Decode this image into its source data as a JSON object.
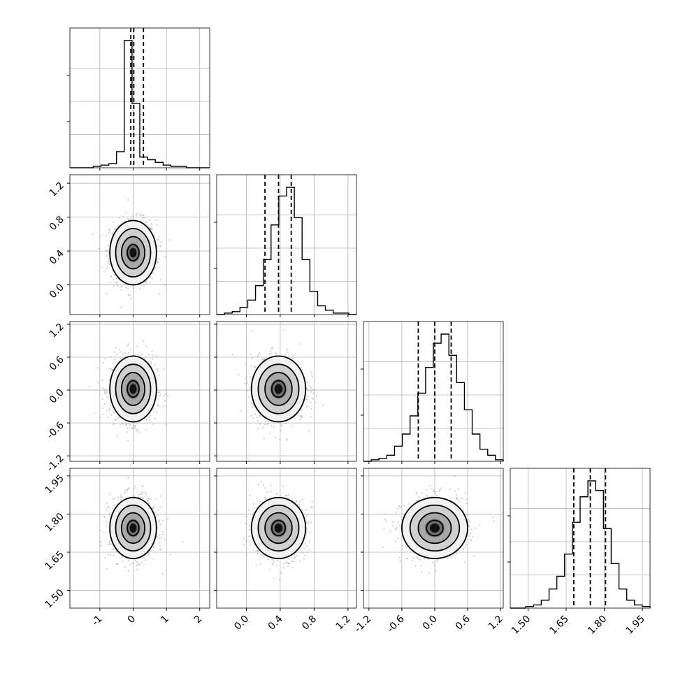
{
  "chart_data": {
    "type": "corner",
    "colors": {
      "histogram": "#000000",
      "grid": "#b0b0b0",
      "scatter": "#a0a0a0",
      "background": "#ffffff"
    },
    "grid": true,
    "n_params": 4,
    "ranges": [
      [
        -1.9,
        2.3
      ],
      [
        -0.35,
        1.3
      ],
      [
        -1.3,
        1.25
      ],
      [
        1.43,
        1.98
      ]
    ],
    "ticks": {
      "p0": [
        "-1",
        "0",
        "1",
        "2"
      ],
      "p1": [
        "0.0",
        "0.4",
        "0.8",
        "1.2"
      ],
      "p2": [
        "-1.2",
        "-0.6",
        "0.0",
        "0.6",
        "1.2"
      ],
      "p3": [
        "1.50",
        "1.65",
        "1.80",
        "1.95"
      ]
    },
    "quantiles": [
      [
        -0.07,
        0.02,
        0.31
      ],
      [
        0.22,
        0.38,
        0.53
      ],
      [
        -0.3,
        0.0,
        0.3
      ],
      [
        1.68,
        1.745,
        1.805
      ]
    ],
    "histograms": [
      {
        "edges_range": [
          -1.9,
          2.3
        ],
        "counts": [
          0,
          0,
          0,
          1,
          2,
          3,
          12,
          95,
          48,
          8,
          6,
          4,
          2,
          1,
          1,
          0,
          0,
          0
        ]
      },
      {
        "edges_range": [
          -0.35,
          1.3
        ],
        "counts": [
          0,
          1,
          2,
          5,
          10,
          20,
          38,
          62,
          82,
          88,
          67,
          38,
          16,
          6,
          3,
          1,
          1,
          0
        ]
      },
      {
        "edges_range": [
          -1.3,
          1.25
        ],
        "counts": [
          0,
          1,
          2,
          4,
          10,
          18,
          30,
          45,
          62,
          78,
          84,
          70,
          52,
          34,
          18,
          8,
          4,
          1
        ]
      },
      {
        "edges_range": [
          1.43,
          1.98
        ],
        "counts": [
          0,
          0,
          1,
          2,
          5,
          12,
          20,
          34,
          54,
          70,
          80,
          74,
          50,
          28,
          12,
          5,
          2,
          1
        ]
      }
    ],
    "pairs": [
      {
        "x": 0,
        "y": 1,
        "center": [
          0.0,
          0.38
        ],
        "sigma": [
          0.35,
          0.19
        ],
        "corr": 0.0
      },
      {
        "x": 0,
        "y": 2,
        "center": [
          0.0,
          0.02
        ],
        "sigma": [
          0.35,
          0.3
        ],
        "corr": 0.0
      },
      {
        "x": 1,
        "y": 2,
        "center": [
          0.38,
          0.02
        ],
        "sigma": [
          0.16,
          0.3
        ],
        "corr": 0.0
      },
      {
        "x": 0,
        "y": 3,
        "center": [
          0.0,
          1.745
        ],
        "sigma": [
          0.35,
          0.06
        ],
        "corr": 0.0
      },
      {
        "x": 1,
        "y": 3,
        "center": [
          0.38,
          1.745
        ],
        "sigma": [
          0.16,
          0.06
        ],
        "corr": 0.0
      },
      {
        "x": 2,
        "y": 3,
        "center": [
          0.0,
          1.745
        ],
        "sigma": [
          0.3,
          0.06
        ],
        "corr": 0.1
      }
    ]
  }
}
